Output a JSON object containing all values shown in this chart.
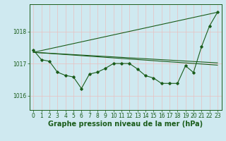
{
  "xlabel": "Graphe pression niveau de la mer (hPa)",
  "background_color": "#cfe9f0",
  "grid_color_v": "#e8c0c0",
  "grid_color_h": "#e8c0c0",
  "line_color": "#1a5c1a",
  "xlim": [
    -0.5,
    23.5
  ],
  "ylim": [
    1015.55,
    1018.85
  ],
  "yticks": [
    1016,
    1017,
    1018
  ],
  "xticks": [
    0,
    1,
    2,
    3,
    4,
    5,
    6,
    7,
    8,
    9,
    10,
    11,
    12,
    13,
    14,
    15,
    16,
    17,
    18,
    19,
    20,
    21,
    22,
    23
  ],
  "series1": [
    1017.42,
    1017.12,
    1017.07,
    1016.73,
    1016.63,
    1016.58,
    1016.22,
    1016.67,
    1016.73,
    1016.85,
    1017.0,
    1017.0,
    1017.0,
    1016.83,
    1016.62,
    1016.55,
    1016.38,
    1016.38,
    1016.38,
    1016.93,
    1016.72,
    1017.52,
    1018.17,
    1018.6
  ],
  "series2_x": [
    0,
    23
  ],
  "series2_y": [
    1017.35,
    1017.02
  ],
  "series3_x": [
    0,
    23
  ],
  "series3_y": [
    1017.35,
    1016.95
  ],
  "series4_x": [
    0,
    23
  ],
  "series4_y": [
    1017.35,
    1018.6
  ],
  "tick_fontsize": 5.5,
  "label_fontsize": 7.0,
  "label_fontweight": "bold"
}
